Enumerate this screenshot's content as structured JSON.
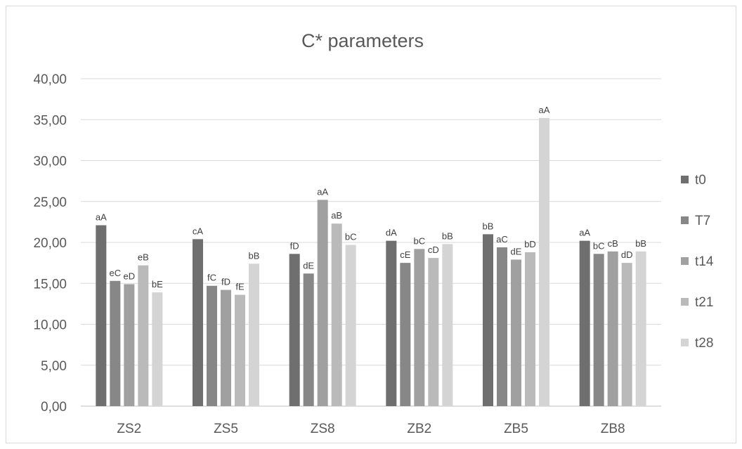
{
  "chart_data": {
    "type": "bar",
    "title": "C* parameters",
    "xlabel": "",
    "ylabel": "",
    "ylim": [
      0,
      40
    ],
    "yticks": [
      "0,00",
      "5,00",
      "10,00",
      "15,00",
      "20,00",
      "25,00",
      "30,00",
      "35,00",
      "40,00"
    ],
    "grid": true,
    "legend_position": "right",
    "categories": [
      "ZS2",
      "ZS5",
      "ZS8",
      "ZB2",
      "ZB5",
      "ZB8"
    ],
    "series": [
      {
        "name": "t0",
        "color": "#6f6f6f",
        "values": [
          22.1,
          20.4,
          18.6,
          20.2,
          21.0,
          20.2
        ],
        "labels": [
          "aA",
          "cA",
          "fD",
          "dA",
          "bB",
          "aA"
        ]
      },
      {
        "name": "T7",
        "color": "#878787",
        "values": [
          15.3,
          14.7,
          16.2,
          17.5,
          19.4,
          18.6
        ],
        "labels": [
          "eC",
          "fC",
          "dE",
          "cE",
          "aC",
          "bC"
        ]
      },
      {
        "name": "t14",
        "color": "#a0a0a0",
        "values": [
          14.9,
          14.2,
          25.2,
          19.2,
          17.9,
          18.9
        ],
        "labels": [
          "eD",
          "fD",
          "aA",
          "bC",
          "dE",
          "cB"
        ]
      },
      {
        "name": "t21",
        "color": "#bababa",
        "values": [
          17.2,
          13.6,
          22.3,
          18.1,
          18.8,
          17.5
        ],
        "labels": [
          "eB",
          "fE",
          "aB",
          "cD",
          "bD",
          "dD"
        ]
      },
      {
        "name": "t28",
        "color": "#d4d4d4",
        "values": [
          13.9,
          17.4,
          19.7,
          19.8,
          35.2,
          18.9
        ],
        "labels": [
          "bE",
          "bB",
          "bC",
          "bB",
          "aA",
          "bB"
        ]
      }
    ]
  }
}
